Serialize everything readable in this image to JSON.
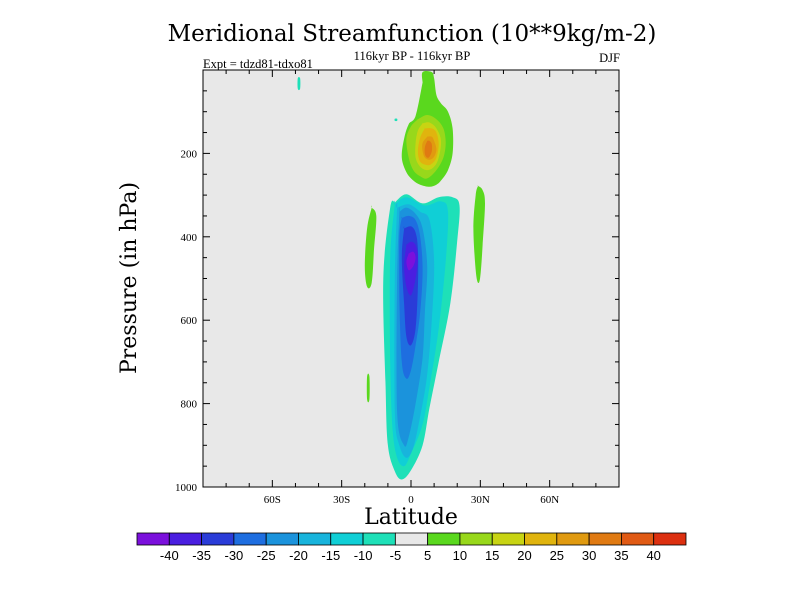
{
  "chart_data": {
    "type": "contour",
    "title": "Meridional Streamfunction (10**9kg/m-2)",
    "subtitle_left": "Expt = tdzd81-tdxo81",
    "subtitle_center": "116kyr BP - 116kyr BP",
    "subtitle_right": "DJF",
    "xlabel": "Latitude",
    "ylabel": "Pressure (in hPa)",
    "xlim": [
      -90,
      90
    ],
    "ylim": [
      1000,
      0
    ],
    "y_inverted": true,
    "x_ticks": [
      {
        "value": -60,
        "label": "60S"
      },
      {
        "value": -30,
        "label": "30S"
      },
      {
        "value": 0,
        "label": "0"
      },
      {
        "value": 30,
        "label": "30N"
      },
      {
        "value": 60,
        "label": "60N"
      }
    ],
    "y_ticks": [
      {
        "value": 200,
        "label": "200"
      },
      {
        "value": 400,
        "label": "400"
      },
      {
        "value": 600,
        "label": "600"
      },
      {
        "value": 800,
        "label": "800"
      },
      {
        "value": 1000,
        "label": "1000"
      }
    ],
    "background_color": "#e8e8e8",
    "colorbar": {
      "levels": [
        -40,
        -35,
        -30,
        -25,
        -20,
        -15,
        -10,
        -5,
        5,
        10,
        15,
        20,
        25,
        30,
        35,
        40
      ],
      "labels": [
        "-40",
        "-35",
        "-30",
        "-25",
        "-20",
        "-15",
        "-10",
        "-5",
        "5",
        "10",
        "15",
        "20",
        "25",
        "30",
        "35",
        "40"
      ],
      "colors": [
        "#7b10dc",
        "#4a1ee0",
        "#2a3cd8",
        "#1e6ee0",
        "#1b93dc",
        "#18b4dc",
        "#10cfd6",
        "#1ee0b8",
        "#e8e8e8",
        "#5ad81e",
        "#98d81b",
        "#c8d413",
        "#e0b40e",
        "#e09a10",
        "#e07a12",
        "#e05a14",
        "#dc3010"
      ]
    },
    "features": [
      {
        "name": "southern-cell-edge",
        "level": -5,
        "color": "#1ee0b8",
        "lat": [
          -7,
          -2,
          5,
          12,
          18,
          21,
          20,
          17,
          12,
          8,
          5,
          0,
          -4,
          -7,
          -10,
          -11,
          -12,
          -9,
          -7
        ],
        "p": [
          318,
          298,
          320,
          305,
          305,
          325,
          410,
          560,
          700,
          810,
          900,
          960,
          982,
          962,
          900,
          760,
          500,
          330,
          318
        ]
      },
      {
        "name": "southern-cell-minus10",
        "level": -10,
        "color": "#10cfd6",
        "lat": [
          -7,
          -2,
          6,
          13,
          16,
          15,
          12,
          8,
          5,
          0,
          -3,
          -6,
          -8,
          -9,
          -9,
          -7
        ],
        "p": [
          322,
          305,
          325,
          315,
          340,
          460,
          620,
          760,
          850,
          920,
          950,
          930,
          860,
          700,
          450,
          322
        ]
      },
      {
        "name": "southern-cell-minus15",
        "level": -15,
        "color": "#18b4dc",
        "lat": [
          -6,
          -1,
          4,
          8,
          10,
          9,
          7,
          4,
          1,
          -2,
          -5,
          -7,
          -7,
          -6
        ],
        "p": [
          330,
          322,
          340,
          360,
          460,
          600,
          730,
          830,
          905,
          930,
          900,
          820,
          500,
          330
        ]
      },
      {
        "name": "southern-cell-minus20",
        "level": -20,
        "color": "#1b93dc",
        "lat": [
          -5,
          -2,
          2,
          5,
          7,
          6,
          5,
          2,
          -1,
          -3,
          -6,
          -6,
          -5
        ],
        "p": [
          340,
          330,
          345,
          380,
          470,
          580,
          690,
          800,
          880,
          900,
          820,
          500,
          340
        ]
      },
      {
        "name": "southern-cell-minus25",
        "level": -25,
        "color": "#1e6ee0",
        "lat": [
          -4,
          -1,
          2,
          4,
          5,
          4,
          2,
          0,
          -2,
          -4,
          -5,
          -5,
          -4
        ],
        "p": [
          355,
          350,
          360,
          400,
          480,
          580,
          660,
          720,
          740,
          700,
          550,
          400,
          355
        ]
      },
      {
        "name": "southern-cell-minus30",
        "level": -30,
        "color": "#2a3cd8",
        "lat": [
          -3,
          0,
          2,
          3,
          3,
          2,
          0,
          -2,
          -3,
          -4,
          -3
        ],
        "p": [
          380,
          375,
          390,
          430,
          520,
          620,
          660,
          640,
          560,
          450,
          380
        ]
      },
      {
        "name": "southern-cell-minus35",
        "level": -35,
        "color": "#4a1ee0",
        "lat": [
          -2,
          0,
          2,
          3,
          2,
          0,
          -2,
          -3,
          -2
        ],
        "p": [
          420,
          412,
          420,
          450,
          500,
          540,
          520,
          470,
          420
        ]
      },
      {
        "name": "southern-cell-minus40",
        "level": -40,
        "color": "#7b10dc",
        "lat": [
          -1,
          1,
          2,
          1,
          -1,
          -2,
          -1
        ],
        "p": [
          440,
          436,
          450,
          470,
          480,
          460,
          440
        ]
      },
      {
        "name": "northern-cell-plus5",
        "level": 5,
        "color": "#5ad81e",
        "lat": [
          5,
          5,
          9,
          10,
          11,
          13,
          16,
          18,
          18,
          16,
          13,
          11,
          8,
          4,
          1,
          -2,
          -4,
          -3,
          -1,
          2,
          5
        ],
        "p": [
          30,
          5,
          5,
          20,
          60,
          80,
          100,
          140,
          200,
          240,
          265,
          275,
          280,
          275,
          265,
          245,
          210,
          165,
          130,
          110,
          30
        ]
      },
      {
        "name": "northern-cell-plus10",
        "level": 10,
        "color": "#98d81b",
        "lat": [
          3,
          7,
          11,
          14,
          15,
          14,
          11,
          7,
          4,
          1,
          -1,
          -2,
          0,
          3
        ],
        "p": [
          118,
          108,
          118,
          140,
          175,
          210,
          240,
          260,
          255,
          240,
          210,
          165,
          135,
          118
        ]
      },
      {
        "name": "northern-cell-plus15",
        "level": 15,
        "color": "#c8d413",
        "lat": [
          5,
          8,
          11,
          13,
          12,
          10,
          7,
          4,
          2,
          2,
          3,
          5
        ],
        "p": [
          128,
          126,
          140,
          170,
          210,
          232,
          240,
          232,
          210,
          175,
          145,
          128
        ]
      },
      {
        "name": "northern-cell-plus20",
        "level": 20,
        "color": "#e0b40e",
        "lat": [
          6,
          9,
          11,
          12,
          11,
          9,
          7,
          4,
          3,
          4,
          6
        ],
        "p": [
          140,
          140,
          150,
          178,
          210,
          225,
          228,
          220,
          195,
          162,
          140
        ]
      },
      {
        "name": "northern-cell-plus25",
        "level": 25,
        "color": "#e09a10",
        "lat": [
          7,
          9,
          10,
          11,
          10,
          8,
          6,
          5,
          5,
          7
        ],
        "p": [
          160,
          160,
          170,
          190,
          208,
          215,
          210,
          195,
          175,
          160
        ]
      },
      {
        "name": "northern-cell-plus30",
        "level": 30,
        "color": "#e07a12",
        "lat": [
          7,
          8,
          9,
          9,
          8,
          7,
          6,
          6,
          7
        ],
        "p": [
          170,
          170,
          178,
          195,
          208,
          210,
          202,
          185,
          170
        ]
      },
      {
        "name": "right-strip-plus5",
        "level": 5,
        "color": "#5ad81e",
        "lat": [
          29,
          31,
          32,
          31,
          30,
          29,
          28,
          27,
          28,
          29
        ],
        "p": [
          278,
          288,
          320,
          420,
          495,
          510,
          480,
          380,
          300,
          278
        ]
      },
      {
        "name": "left-strip-plus5",
        "level": 5,
        "color": "#5ad81e",
        "lat": [
          -17,
          -15,
          -16,
          -17,
          -19,
          -20,
          -19,
          -17
        ],
        "p": [
          330,
          350,
          430,
          510,
          520,
          470,
          380,
          330
        ]
      },
      {
        "name": "blip-minus5-top",
        "level": -5,
        "color": "#1ee0b8",
        "lat": [
          -49,
          -48,
          -48,
          -49
        ],
        "p": [
          20,
          20,
          45,
          45
        ]
      },
      {
        "name": "blip-minus5-small",
        "level": -5,
        "color": "#1ee0b8",
        "lat": [
          -7,
          -6,
          -6,
          -7
        ],
        "p": [
          117,
          117,
          122,
          122
        ]
      },
      {
        "name": "blip-plus5-low",
        "level": 5,
        "color": "#5ad81e",
        "lat": [
          -19,
          -18,
          -18,
          -19
        ],
        "p": [
          735,
          735,
          790,
          790
        ]
      }
    ]
  }
}
